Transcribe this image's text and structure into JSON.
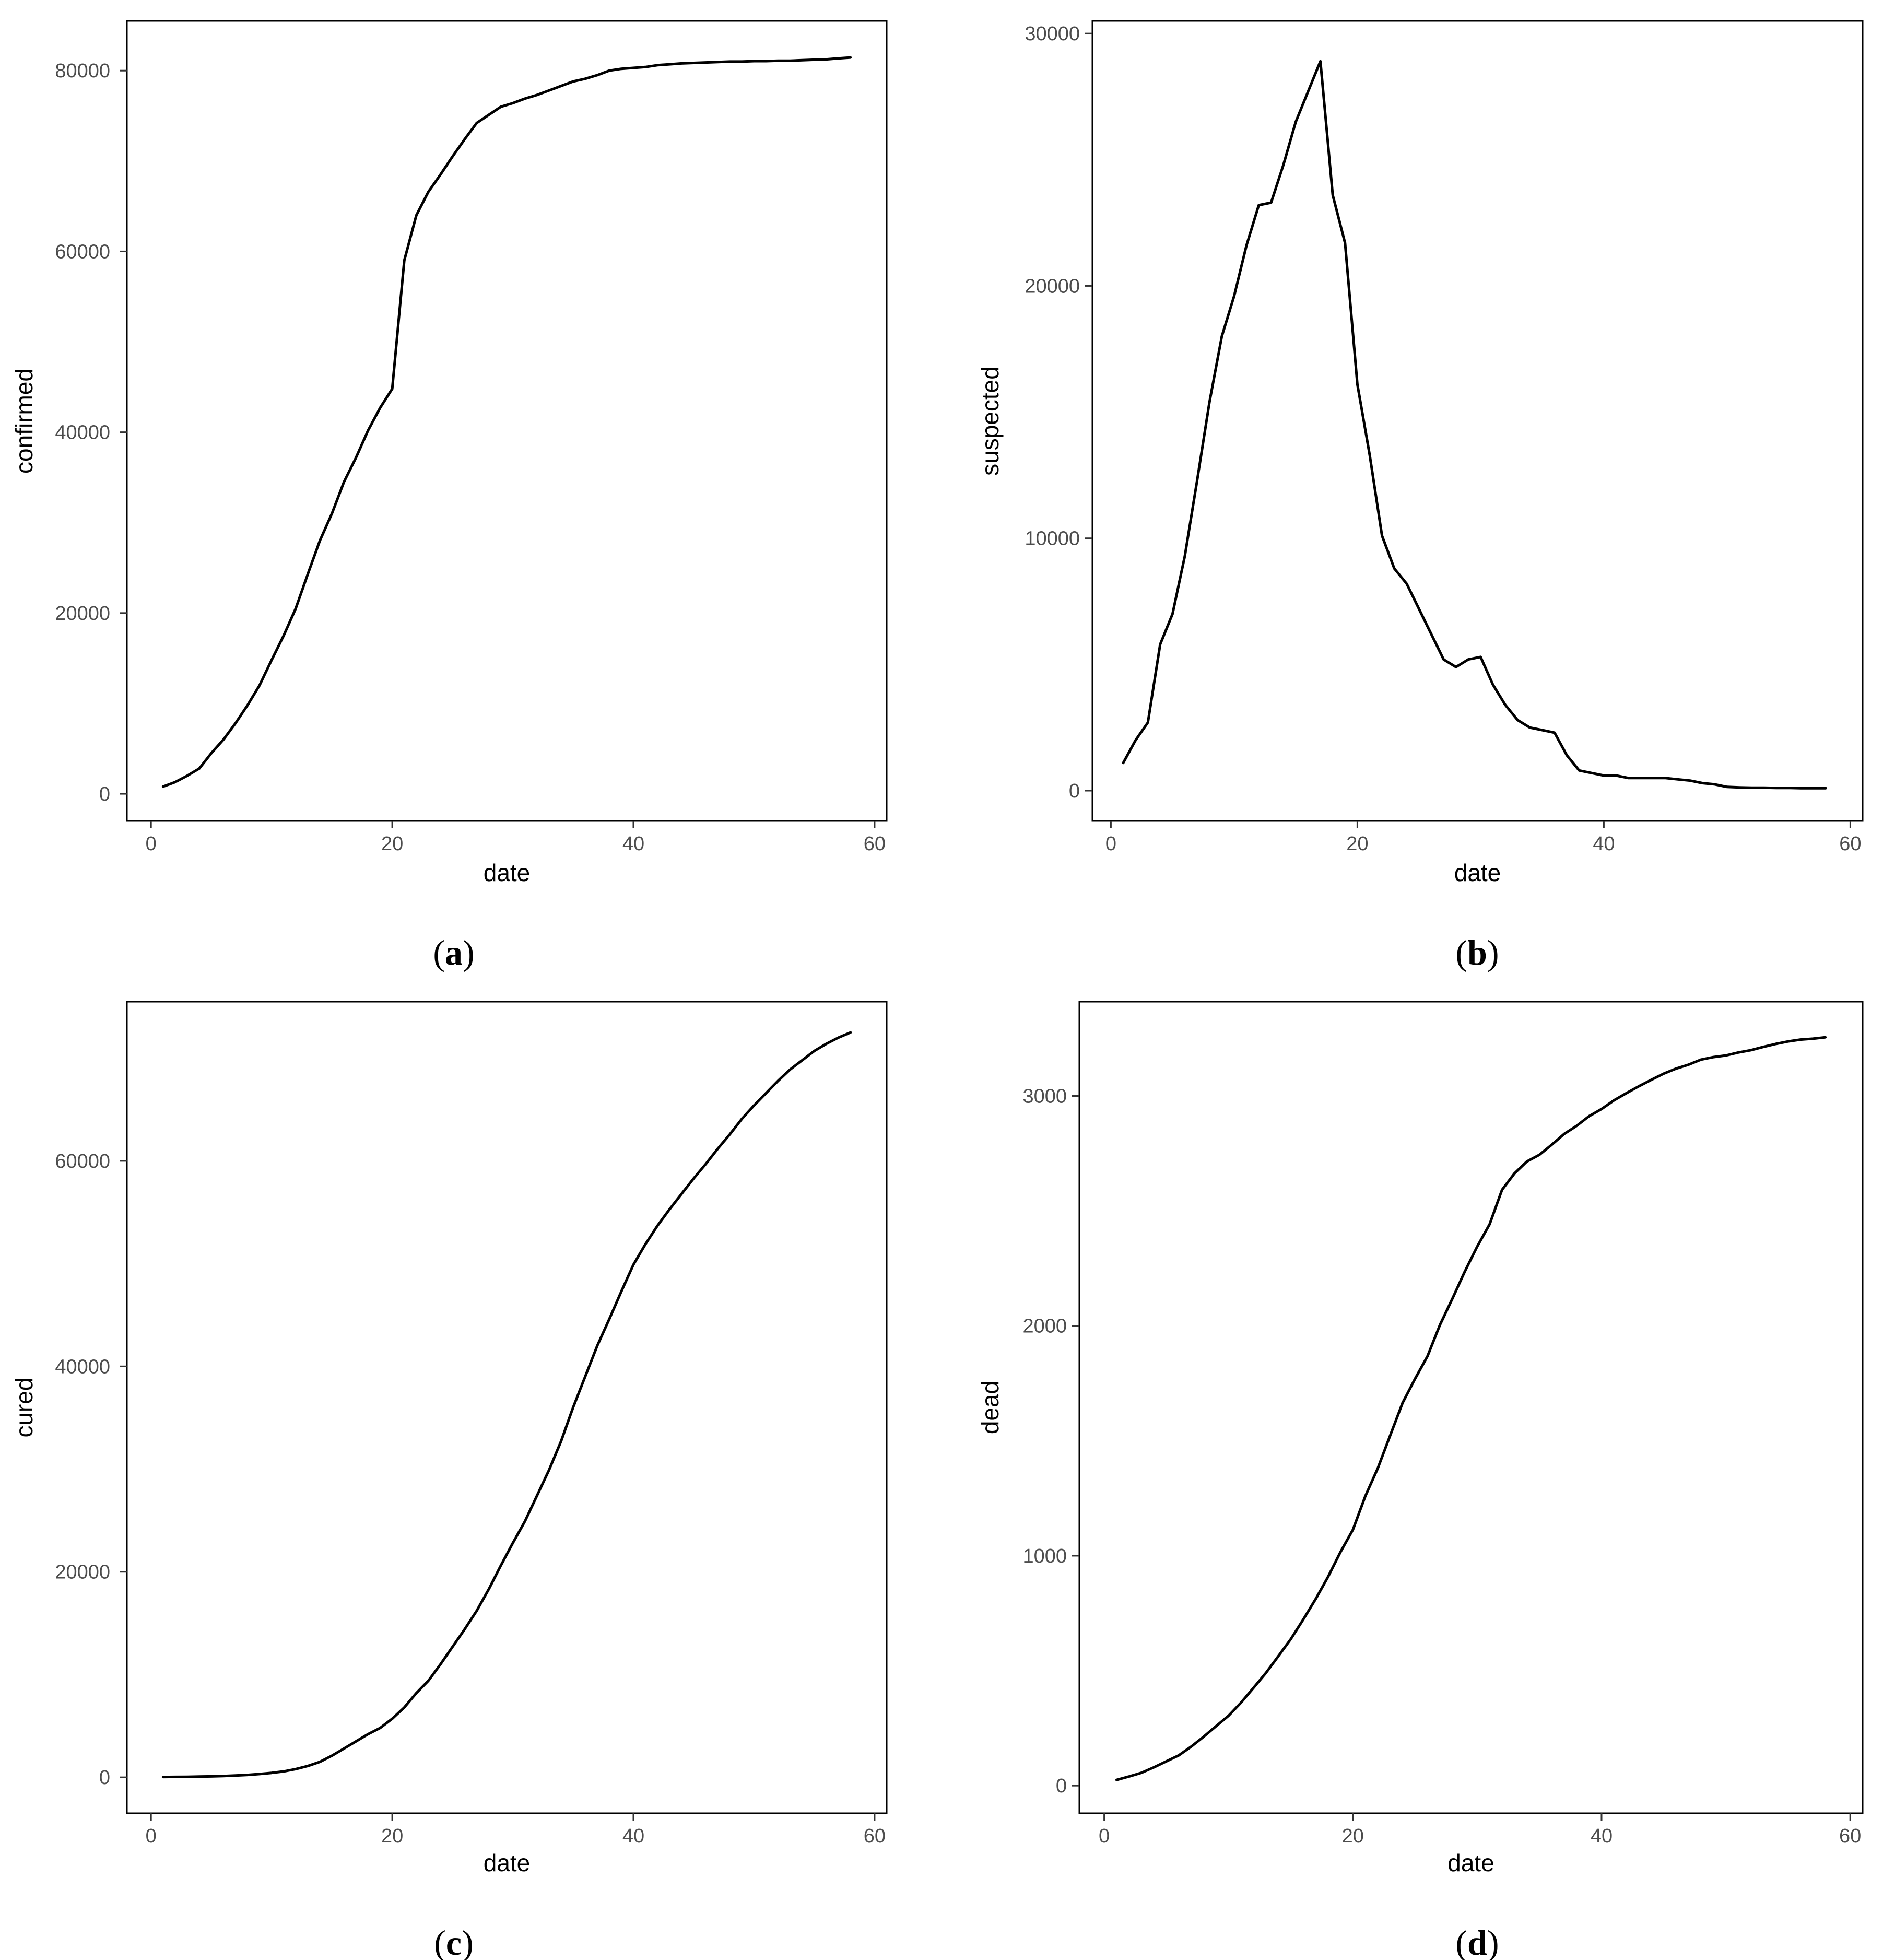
{
  "chart_data": [
    {
      "type": "line",
      "panel": "a",
      "xlabel": "date",
      "ylabel": "confirmed",
      "xlim": [
        -2,
        61
      ],
      "ylim": [
        -3000,
        85500
      ],
      "xticks": [
        0,
        20,
        40,
        60
      ],
      "yticks": [
        0,
        20000,
        40000,
        60000,
        80000
      ],
      "grid": false,
      "series": [
        {
          "x": [
            1,
            2,
            3,
            4,
            5,
            6,
            7,
            8,
            9,
            10,
            11,
            12,
            13,
            14,
            15,
            16,
            17,
            18,
            19,
            20,
            21,
            22,
            23,
            24,
            25,
            26,
            27,
            28,
            29,
            30,
            31,
            32,
            33,
            34,
            35,
            36,
            37,
            38,
            39,
            40,
            41,
            42,
            43,
            44,
            45,
            46,
            47,
            48,
            49,
            50,
            51,
            52,
            53,
            54,
            55,
            56,
            57,
            58
          ],
          "y": [
            800,
            1300,
            2000,
            2800,
            4500,
            6000,
            7800,
            9800,
            12000,
            14800,
            17500,
            20500,
            24300,
            28000,
            31000,
            34500,
            37200,
            40200,
            42700,
            44800,
            59000,
            64000,
            66600,
            68500,
            70500,
            72400,
            74200,
            75100,
            76000,
            76400,
            76900,
            77300,
            77800,
            78300,
            78800,
            79100,
            79500,
            80000,
            80200,
            80300,
            80400,
            80600,
            80700,
            80800,
            80850,
            80900,
            80950,
            81000,
            81000,
            81050,
            81050,
            81100,
            81100,
            81150,
            81200,
            81250,
            81350,
            81450
          ]
        }
      ]
    },
    {
      "type": "line",
      "panel": "b",
      "xlabel": "date",
      "ylabel": "suspected",
      "xlim": [
        -1.5,
        61
      ],
      "ylim": [
        -1200,
        30500
      ],
      "xticks": [
        0,
        20,
        40,
        60
      ],
      "yticks": [
        0,
        10000,
        20000,
        30000
      ],
      "grid": false,
      "series": [
        {
          "x": [
            1,
            2,
            3,
            4,
            5,
            6,
            7,
            8,
            9,
            10,
            11,
            12,
            13,
            14,
            15,
            16,
            17,
            18,
            19,
            20,
            21,
            22,
            23,
            24,
            25,
            26,
            27,
            28,
            29,
            30,
            31,
            32,
            33,
            34,
            35,
            36,
            37,
            38,
            39,
            40,
            41,
            42,
            43,
            44,
            45,
            46,
            47,
            48,
            49,
            50,
            51,
            52,
            53,
            54,
            55,
            56,
            57,
            58
          ],
          "y": [
            1100,
            2000,
            2700,
            5800,
            7000,
            9300,
            12300,
            15400,
            18000,
            19600,
            21600,
            23200,
            23300,
            24800,
            26500,
            27700,
            28900,
            23600,
            21700,
            16100,
            13300,
            10100,
            8800,
            8200,
            7200,
            6200,
            5200,
            4900,
            5200,
            5300,
            4200,
            3400,
            2800,
            2500,
            2400,
            2300,
            1400,
            800,
            700,
            600,
            600,
            500,
            500,
            500,
            500,
            450,
            400,
            300,
            250,
            150,
            130,
            120,
            120,
            110,
            110,
            100,
            100,
            100
          ]
        }
      ]
    },
    {
      "type": "line",
      "panel": "c",
      "xlabel": "date",
      "ylabel": "cured",
      "xlim": [
        -2,
        61
      ],
      "ylim": [
        -3500,
        75500
      ],
      "xticks": [
        0,
        20,
        40,
        60
      ],
      "yticks": [
        0,
        20000,
        40000,
        60000
      ],
      "grid": false,
      "series": [
        {
          "x": [
            1,
            2,
            3,
            4,
            5,
            6,
            7,
            8,
            9,
            10,
            11,
            12,
            13,
            14,
            15,
            16,
            17,
            18,
            19,
            20,
            21,
            22,
            23,
            24,
            25,
            26,
            27,
            28,
            29,
            30,
            31,
            32,
            33,
            34,
            35,
            36,
            37,
            38,
            39,
            40,
            41,
            42,
            43,
            44,
            45,
            46,
            47,
            48,
            49,
            50,
            51,
            52,
            53,
            54,
            55,
            56,
            57,
            58
          ],
          "y": [
            30,
            40,
            50,
            70,
            90,
            120,
            170,
            230,
            320,
            430,
            570,
            800,
            1100,
            1500,
            2100,
            2800,
            3500,
            4200,
            4800,
            5700,
            6800,
            8200,
            9400,
            11000,
            12700,
            14400,
            16200,
            18300,
            20600,
            22800,
            24900,
            27400,
            29900,
            32700,
            36000,
            39000,
            42000,
            44600,
            47300,
            49900,
            51900,
            53700,
            55300,
            56800,
            58300,
            59700,
            61200,
            62600,
            64100,
            65400,
            66600,
            67800,
            68900,
            69800,
            70700,
            71400,
            72000,
            72500
          ]
        }
      ]
    },
    {
      "type": "line",
      "panel": "d",
      "xlabel": "date",
      "ylabel": "dead",
      "xlim": [
        -2,
        61
      ],
      "ylim": [
        -120,
        3410
      ],
      "xticks": [
        0,
        20,
        40,
        60
      ],
      "yticks": [
        0,
        1000,
        2000,
        3000
      ],
      "grid": false,
      "series": [
        {
          "x": [
            1,
            2,
            3,
            4,
            5,
            6,
            7,
            8,
            9,
            10,
            11,
            12,
            13,
            14,
            15,
            16,
            17,
            18,
            19,
            20,
            21,
            22,
            23,
            24,
            25,
            26,
            27,
            28,
            29,
            30,
            31,
            32,
            33,
            34,
            35,
            36,
            37,
            38,
            39,
            40,
            41,
            42,
            43,
            44,
            45,
            46,
            47,
            48,
            49,
            50,
            51,
            52,
            53,
            54,
            55,
            56,
            57,
            58
          ],
          "y": [
            25,
            40,
            56,
            80,
            106,
            132,
            170,
            213,
            259,
            304,
            361,
            425,
            490,
            563,
            637,
            722,
            811,
            908,
            1016,
            1113,
            1259,
            1380,
            1523,
            1665,
            1770,
            1868,
            2004,
            2118,
            2236,
            2345,
            2442,
            2592,
            2663,
            2715,
            2744,
            2788,
            2835,
            2870,
            2912,
            2943,
            2981,
            3012,
            3042,
            3070,
            3097,
            3119,
            3136,
            3158,
            3169,
            3176,
            3189,
            3199,
            3213,
            3226,
            3237,
            3245,
            3249,
            3255
          ]
        }
      ]
    }
  ],
  "panel_labels": [
    "(a)",
    "(b)",
    "(c)",
    "(d)"
  ]
}
